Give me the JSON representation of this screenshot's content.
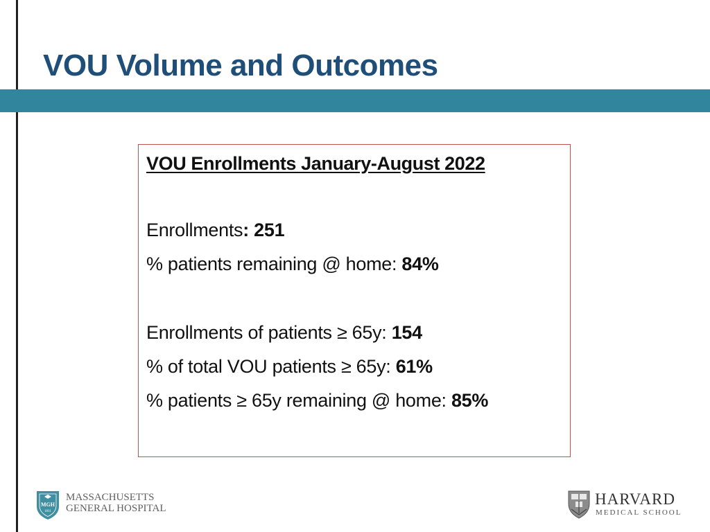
{
  "slide": {
    "title": "VOU Volume and Outcomes"
  },
  "box": {
    "heading": "VOU Enrollments January-August 2022",
    "stats": [
      {
        "label": "Enrollments",
        "sep": ": ",
        "value": "251"
      },
      {
        "label": "% patients remaining @ home: ",
        "value": "84%"
      },
      {
        "label": "Enrollments of patients ≥ 65y: ",
        "value": "154"
      },
      {
        "label": "% of total VOU patients ≥ 65y: ",
        "value": "61%"
      },
      {
        "label": "% patients ≥ 65y remaining @ home: ",
        "value": "85%"
      }
    ]
  },
  "footer": {
    "mgh": {
      "shield_text": "MGH",
      "shield_year": "1811",
      "line1": "MASSACHUSETTS",
      "line2": "GENERAL HOSPITAL"
    },
    "hms": {
      "name": "HARVARD",
      "sub": "MEDICAL SCHOOL"
    }
  },
  "colors": {
    "title": "#1f4e79",
    "band": "#31859c",
    "box_border": "#c0504d"
  }
}
